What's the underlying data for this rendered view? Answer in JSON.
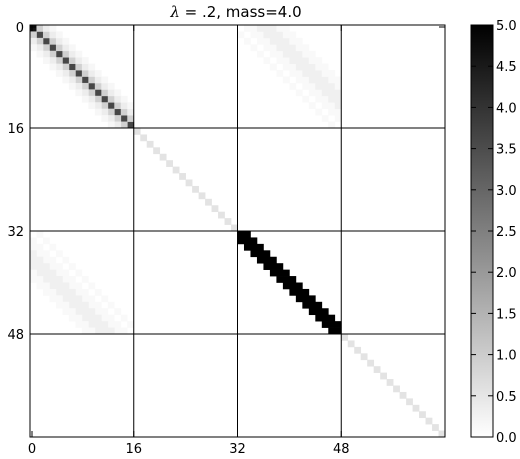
{
  "chart_data": {
    "type": "heatmap",
    "title_symbol": "λ",
    "title_rest": " = .2, mass=4.0",
    "n": 64,
    "block_size": 16,
    "x_ticks": [
      0,
      16,
      32,
      48
    ],
    "y_ticks": [
      0,
      16,
      32,
      48
    ],
    "colorbar": {
      "min": 0.0,
      "max": 5.0,
      "ticks": [
        "0.0",
        "0.5",
        "1.0",
        "1.5",
        "2.0",
        "2.5",
        "3.0",
        "3.5",
        "4.0",
        "4.5",
        "5.0"
      ],
      "colormap": "gray_r"
    },
    "grid": true,
    "blocks": [
      {
        "name": "block-0-0-diagonal",
        "row_start": 0,
        "col_start": 0,
        "kind": "diagonal",
        "value": 3.6,
        "first_value": 4.6
      },
      {
        "name": "block-0-0-near-diagonal",
        "row_start": 0,
        "col_start": 0,
        "kind": "off-diagonal-band",
        "offsets": [
          1,
          -1
        ],
        "value": 0.9
      },
      {
        "name": "block-0-0-band2",
        "row_start": 0,
        "col_start": 0,
        "kind": "off-diagonal-band",
        "offsets": [
          2,
          -2
        ],
        "value": 0.35
      },
      {
        "name": "block-0-0-band3",
        "row_start": 0,
        "col_start": 0,
        "kind": "off-diagonal-band",
        "offsets": [
          3,
          -3
        ],
        "value": 0.15
      },
      {
        "name": "block-0-2-band-a",
        "row_start": 0,
        "col_start": 32,
        "kind": "off-diagonal-band",
        "offsets": [
          -1,
          1,
          2
        ],
        "value": 0.12
      },
      {
        "name": "block-0-2-band-b",
        "row_start": 0,
        "col_start": 32,
        "kind": "off-diagonal-band",
        "offsets": [
          3,
          4,
          5
        ],
        "value": 0.3
      },
      {
        "name": "block-0-2-band-c",
        "row_start": 0,
        "col_start": 32,
        "kind": "off-diagonal-band",
        "offsets": [
          6,
          7
        ],
        "value": 0.12
      },
      {
        "name": "block-2-0-band-a",
        "row_start": 32,
        "col_start": 0,
        "kind": "off-diagonal-band",
        "offsets": [
          1,
          -1,
          -2
        ],
        "value": 0.12
      },
      {
        "name": "block-2-0-band-b",
        "row_start": 32,
        "col_start": 0,
        "kind": "off-diagonal-band",
        "offsets": [
          -3,
          -4,
          -5
        ],
        "value": 0.3
      },
      {
        "name": "block-2-0-band-c",
        "row_start": 32,
        "col_start": 0,
        "kind": "off-diagonal-band",
        "offsets": [
          -6,
          -7
        ],
        "value": 0.12
      },
      {
        "name": "block-1-1-diagonal",
        "row_start": 16,
        "col_start": 16,
        "kind": "diagonal",
        "value": 0.55
      },
      {
        "name": "block-3-3-diagonal",
        "row_start": 48,
        "col_start": 48,
        "kind": "diagonal",
        "value": 0.55
      },
      {
        "name": "block-2-2-diagonal",
        "row_start": 32,
        "col_start": 32,
        "kind": "off-diagonal-band",
        "offsets": [
          0,
          1,
          -1
        ],
        "value": 5.0
      }
    ]
  }
}
